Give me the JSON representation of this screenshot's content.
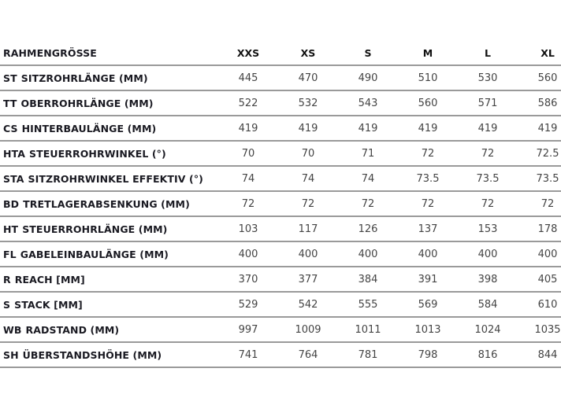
{
  "table": {
    "header_label": "RAHMENGRÖSSE",
    "sizes": [
      "XXS",
      "XS",
      "S",
      "M",
      "L",
      "XL"
    ],
    "rows": [
      {
        "code": "ST",
        "name": "SITZROHRLÄNGE (MM)",
        "values": [
          "445",
          "470",
          "490",
          "510",
          "530",
          "560"
        ]
      },
      {
        "code": "TT",
        "name": "OBERROHRLÄNGE (MM)",
        "values": [
          "522",
          "532",
          "543",
          "560",
          "571",
          "586"
        ]
      },
      {
        "code": "CS",
        "name": "HINTERBAULÄNGE (MM)",
        "values": [
          "419",
          "419",
          "419",
          "419",
          "419",
          "419"
        ]
      },
      {
        "code": "HTA",
        "name": "STEUERROHRWINKEL (°)",
        "values": [
          "70",
          "70",
          "71",
          "72",
          "72",
          "72.5"
        ]
      },
      {
        "code": "STA",
        "name": "SITZROHRWINKEL EFFEKTIV (°)",
        "values": [
          "74",
          "74",
          "74",
          "73.5",
          "73.5",
          "73.5"
        ]
      },
      {
        "code": "BD",
        "name": "TRETLAGERABSENKUNG (MM)",
        "values": [
          "72",
          "72",
          "72",
          "72",
          "72",
          "72"
        ]
      },
      {
        "code": "HT",
        "name": "STEUERROHRLÄNGE (MM)",
        "values": [
          "103",
          "117",
          "126",
          "137",
          "153",
          "178"
        ]
      },
      {
        "code": "FL",
        "name": "GABELEINBAULÄNGE (MM)",
        "values": [
          "400",
          "400",
          "400",
          "400",
          "400",
          "400"
        ]
      },
      {
        "code": "R",
        "name": "REACH [MM]",
        "values": [
          "370",
          "377",
          "384",
          "391",
          "398",
          "405"
        ]
      },
      {
        "code": "S",
        "name": "STACK [MM]",
        "values": [
          "529",
          "542",
          "555",
          "569",
          "584",
          "610"
        ]
      },
      {
        "code": "WB",
        "name": "RADSTAND (MM)",
        "values": [
          "997",
          "1009",
          "1011",
          "1013",
          "1024",
          "1035"
        ]
      },
      {
        "code": "SH",
        "name": "ÜBERSTANDSHÖHE (MM)",
        "values": [
          "741",
          "764",
          "781",
          "798",
          "816",
          "844"
        ]
      }
    ]
  }
}
